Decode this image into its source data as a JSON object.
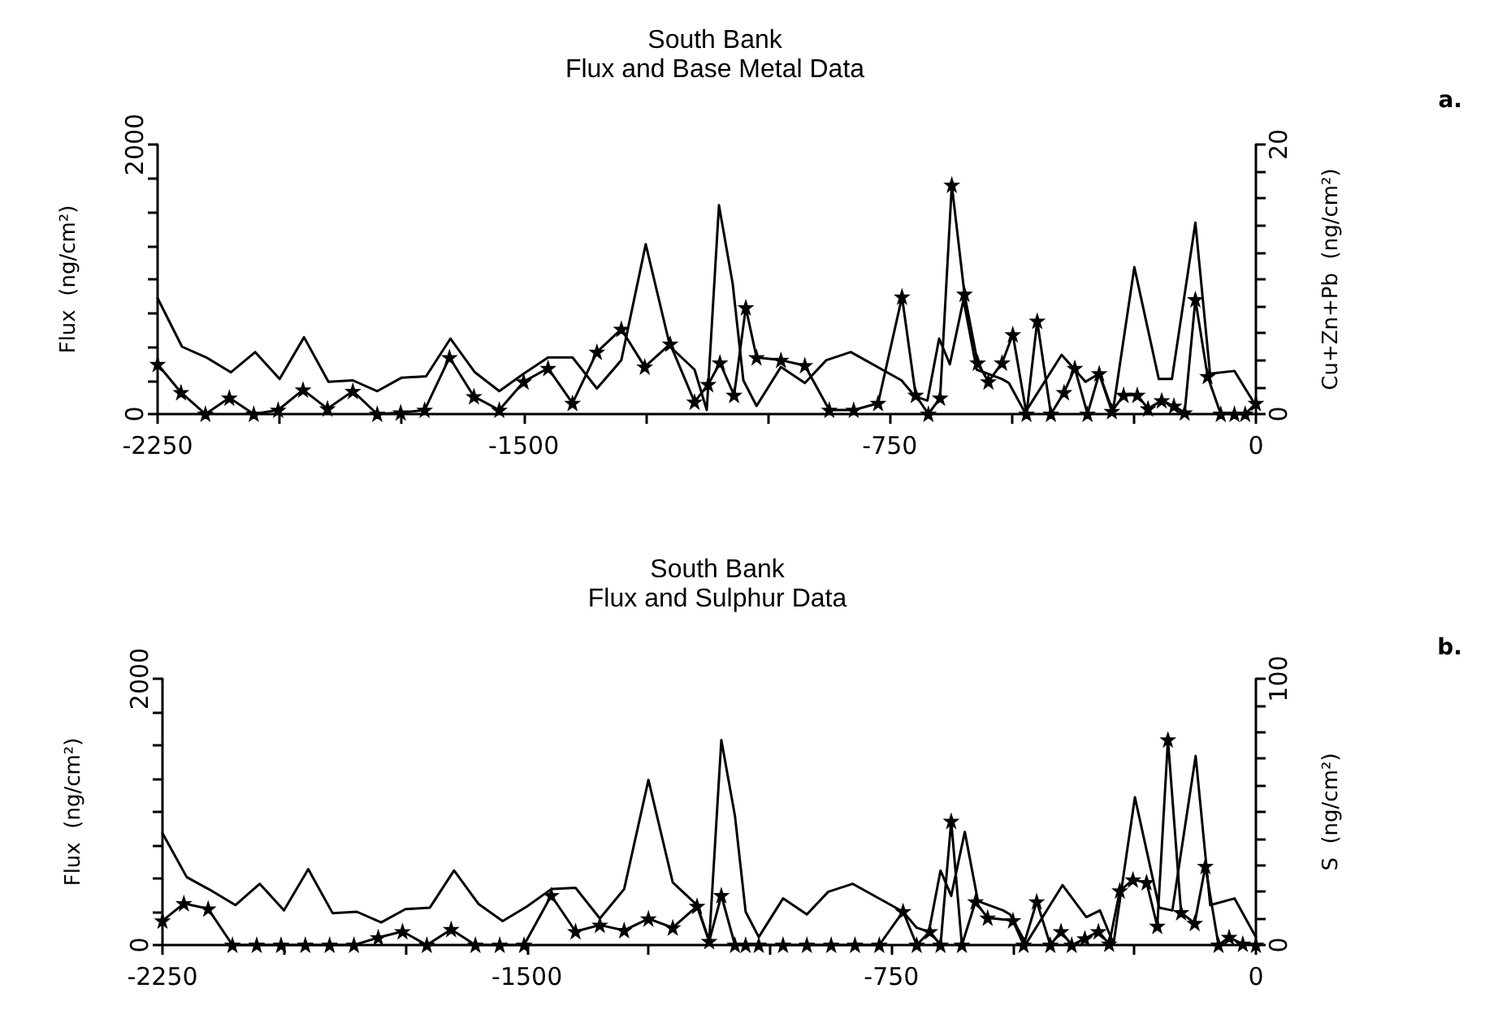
{
  "chart_data": [
    {
      "type": "line",
      "title": "South Bank",
      "subtitle": "Flux and Base Metal Data",
      "ylabel": "Flux  (ng/cm²)",
      "y2label": "Cu+Zn+Pb  (ng/cm²)",
      "annotations": [
        "a."
      ],
      "xlim": [
        -2250,
        0
      ],
      "xticks": [
        -2250,
        {
          "value": -2000,
          "label": null
        },
        {
          "value": -1750,
          "label": null
        },
        -1500,
        {
          "value": -1250,
          "label": null
        },
        {
          "value": -1000,
          "label": null
        },
        -750,
        {
          "value": -500,
          "label": null
        },
        {
          "value": -250,
          "label": null
        },
        0
      ],
      "ylim": [
        0,
        2000
      ],
      "yticks": [
        {
          "value": 0,
          "label": "0"
        },
        {
          "value": 250,
          "label": null
        },
        {
          "value": 500,
          "label": null
        },
        {
          "value": 750,
          "label": null
        },
        {
          "value": 1000,
          "label": null
        },
        {
          "value": 1250,
          "label": null
        },
        {
          "value": 1500,
          "label": null
        },
        {
          "value": 1750,
          "label": null
        },
        2000
      ],
      "y2lim": [
        0,
        20
      ],
      "y2ticks": [
        {
          "value": 0,
          "label": "0"
        },
        {
          "value": 2,
          "label": null
        },
        {
          "value": 4,
          "label": null
        },
        {
          "value": 6,
          "label": null
        },
        {
          "value": 8,
          "label": null
        },
        {
          "value": 10,
          "label": null
        },
        {
          "value": 12,
          "label": null
        },
        {
          "value": 14,
          "label": null
        },
        {
          "value": 16,
          "label": null
        },
        {
          "value": 18,
          "label": null
        },
        20
      ],
      "marker": "none",
      "line_style": "solid",
      "grid": false,
      "series": [
        {
          "color": "#000000",
          "x": [
            -2250,
            -2200,
            -2150,
            -2100,
            -2050,
            -2000,
            -1950,
            -1900,
            -1850,
            -1800,
            -1750,
            -1700,
            -1650,
            -1600,
            -1550,
            -1500,
            -1450,
            -1400,
            -1350,
            -1300,
            -1250,
            -1200,
            -1150,
            -1125,
            -1100,
            -1072,
            -1050,
            -1023,
            -973,
            -924,
            -880,
            -830,
            -726,
            -698,
            -673,
            -649,
            -627,
            -599,
            -572,
            -520,
            -506,
            -473,
            -398,
            -349,
            -321,
            -293,
            -249,
            -199,
            -172,
            -124,
            -94,
            -44,
            0
          ],
          "values": [
            860,
            500,
            420,
            310,
            460,
            260,
            570,
            240,
            250,
            170,
            270,
            280,
            560,
            310,
            170,
            300,
            420,
            420,
            190,
            400,
            1260,
            500,
            330,
            30,
            1550,
            970,
            250,
            60,
            350,
            230,
            400,
            460,
            250,
            130,
            100,
            560,
            370,
            850,
            330,
            260,
            230,
            10,
            440,
            240,
            300,
            20,
            1090,
            260,
            260,
            1420,
            300,
            320,
            60
          ]
        },
        {
          "color": "#000000",
          "axis": "y2",
          "marker": "star",
          "x": [
            -2250,
            -2202,
            -2152,
            -2103,
            -2053,
            -2003,
            -1952,
            -1902,
            -1850,
            -1800,
            -1752,
            -1703,
            -1652,
            -1602,
            -1550,
            -1500,
            -1450,
            -1400,
            -1350,
            -1300,
            -1252,
            -1200,
            -1150,
            -1122,
            -1098,
            -1069,
            -1045,
            -1023,
            -973,
            -924,
            -874,
            -824,
            -774,
            -725,
            -697,
            -671,
            -647,
            -623,
            -597,
            -570,
            -548,
            -520,
            -498,
            -470,
            -448,
            -420,
            -393,
            -371,
            -345,
            -321,
            -295,
            -271,
            -243,
            -221,
            -193,
            -168,
            -146,
            -124,
            -99,
            -72,
            -44,
            -22,
            0
          ],
          "values": [
            3.7,
            1.6,
            0,
            1.2,
            0,
            0.3,
            1.8,
            0.4,
            1.7,
            0,
            0.1,
            0.3,
            4.2,
            1.3,
            0.3,
            2.4,
            3.4,
            0.8,
            4.6,
            6.3,
            3.5,
            5.2,
            0.9,
            2.2,
            3.8,
            1.4,
            7.9,
            4.2,
            4.0,
            3.6,
            0.3,
            0.3,
            0.8,
            8.7,
            1.4,
            0,
            1.2,
            17.0,
            8.9,
            3.8,
            2.4,
            3.8,
            5.9,
            0,
            6.9,
            0,
            1.6,
            3.4,
            0,
            3.0,
            0.2,
            1.4,
            1.4,
            0.4,
            1.0,
            0.6,
            0.1,
            8.5,
            2.8,
            0,
            0,
            0,
            0.8
          ]
        }
      ]
    },
    {
      "type": "line",
      "title": "South Bank",
      "subtitle": "Flux and Sulphur Data",
      "ylabel": "Flux  (ng/cm²)",
      "y2label": "S  (ng/cm²)",
      "annotations": [
        "b."
      ],
      "xlim": [
        -2250,
        0
      ],
      "xticks": [
        -2250,
        {
          "value": -2000,
          "label": null
        },
        {
          "value": -1750,
          "label": null
        },
        -1500,
        {
          "value": -1250,
          "label": null
        },
        {
          "value": -1000,
          "label": null
        },
        -750,
        {
          "value": -500,
          "label": null
        },
        {
          "value": -250,
          "label": null
        },
        0
      ],
      "ylim": [
        0,
        2000
      ],
      "yticks": [
        {
          "value": 0,
          "label": "0"
        },
        {
          "value": 250,
          "label": null
        },
        {
          "value": 500,
          "label": null
        },
        {
          "value": 750,
          "label": null
        },
        {
          "value": 1000,
          "label": null
        },
        {
          "value": 1250,
          "label": null
        },
        {
          "value": 1500,
          "label": null
        },
        {
          "value": 1750,
          "label": null
        },
        2000
      ],
      "y2lim": [
        0,
        100
      ],
      "y2ticks": [
        {
          "value": 0,
          "label": "0"
        },
        {
          "value": 10,
          "label": null
        },
        {
          "value": 20,
          "label": null
        },
        {
          "value": 30,
          "label": null
        },
        {
          "value": 40,
          "label": null
        },
        {
          "value": 50,
          "label": null
        },
        {
          "value": 60,
          "label": null
        },
        {
          "value": 70,
          "label": null
        },
        {
          "value": 80,
          "label": null
        },
        {
          "value": 90,
          "label": null
        },
        100
      ],
      "marker": "none",
      "line_style": "solid",
      "grid": false,
      "series": [
        {
          "color": "#000000",
          "x": [
            -2250,
            -2200,
            -2150,
            -2100,
            -2050,
            -2000,
            -1950,
            -1900,
            -1850,
            -1800,
            -1750,
            -1700,
            -1650,
            -1600,
            -1550,
            -1500,
            -1450,
            -1400,
            -1350,
            -1300,
            -1250,
            -1200,
            -1150,
            -1125,
            -1100,
            -1072,
            -1050,
            -1023,
            -973,
            -924,
            -880,
            -830,
            -726,
            -698,
            -673,
            -649,
            -627,
            -599,
            -572,
            -520,
            -506,
            -473,
            -398,
            -349,
            -321,
            -293,
            -249,
            -199,
            -172,
            -124,
            -94,
            -44,
            0
          ],
          "values": [
            840,
            510,
            410,
            300,
            460,
            260,
            570,
            240,
            250,
            170,
            270,
            280,
            560,
            310,
            180,
            290,
            420,
            430,
            200,
            420,
            1240,
            470,
            300,
            30,
            1540,
            970,
            250,
            60,
            350,
            230,
            400,
            460,
            250,
            130,
            100,
            560,
            370,
            850,
            330,
            260,
            230,
            10,
            450,
            210,
            260,
            10,
            1110,
            280,
            260,
            1420,
            300,
            350,
            60
          ]
        },
        {
          "color": "#000000",
          "axis": "y2",
          "marker": "star",
          "x": [
            -2250,
            -2206,
            -2156,
            -2106,
            -2056,
            -2006,
            -1956,
            -1906,
            -1856,
            -1806,
            -1756,
            -1706,
            -1656,
            -1606,
            -1556,
            -1506,
            -1450,
            -1400,
            -1350,
            -1300,
            -1250,
            -1200,
            -1150,
            -1125,
            -1100,
            -1072,
            -1050,
            -1023,
            -973,
            -924,
            -874,
            -825,
            -775,
            -726,
            -698,
            -671,
            -649,
            -627,
            -605,
            -577,
            -552,
            -500,
            -478,
            -451,
            -423,
            -401,
            -379,
            -352,
            -324,
            -302,
            -280,
            -253,
            -225,
            -203,
            -181,
            -154,
            -126,
            -104,
            -77,
            -55,
            -27,
            0
          ],
          "values": [
            9.1,
            15.6,
            13.6,
            0,
            0,
            0,
            0,
            0,
            0,
            2.8,
            5.1,
            0,
            5.9,
            0,
            0,
            0,
            18.6,
            5.1,
            7.5,
            5.5,
            9.9,
            6.5,
            14.6,
            1.4,
            18.6,
            0,
            0,
            0,
            0,
            0,
            0,
            0,
            0,
            12.6,
            0,
            5.1,
            0,
            46.5,
            0,
            16.3,
            10.2,
            9.2,
            0,
            16.3,
            0,
            5.1,
            0,
            2.4,
            5.1,
            0.4,
            20.4,
            24.5,
            23.5,
            7.1,
            77.1,
            12.2,
            8.2,
            29.6,
            0,
            2.9,
            0.4,
            0
          ]
        }
      ]
    }
  ]
}
